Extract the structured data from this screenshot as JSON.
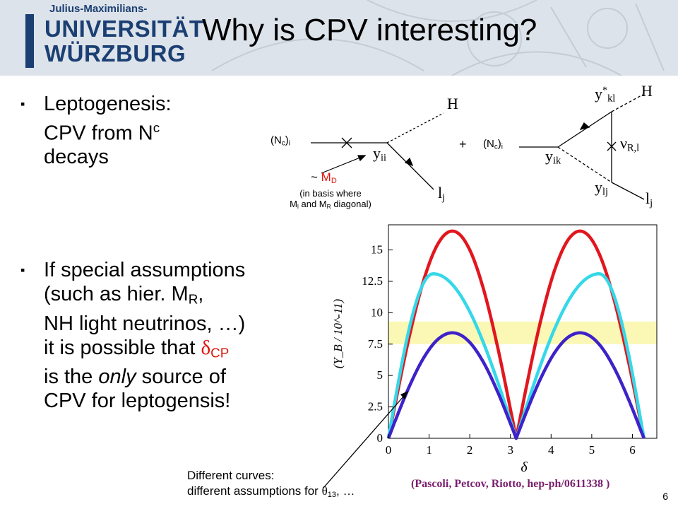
{
  "logo": {
    "line1": "Julius-Maximilians-",
    "line2": "UNIVERSITÄT",
    "line3": "WÜRZBURG"
  },
  "title": "Why is CPV interesting?",
  "bullets": {
    "marker": "▪",
    "b1_line1": "Leptogenesis:",
    "b1_line2": "CPV from N",
    "b1_sup": "c",
    "b1_line3": "decays",
    "b2_line1": "If special assumptions",
    "b2_line2a": "(such as hier. M",
    "b2_line2sub": "R",
    "b2_line2b": ",",
    "b2_line3": "NH light neutrinos, …)",
    "b2_line4a": "it is possible that ",
    "b2_delta": "δ",
    "b2_cp": "CP",
    "b2_line5a": "is the ",
    "b2_only": "only",
    "b2_line5b": " source of",
    "b2_line6": "CPV for leptogensis!"
  },
  "diagram": {
    "nc_left": "(N",
    "nc_left_sub": "c",
    "nc_left_close": ")",
    "nc_left_i": "i",
    "H1": "H",
    "y_ii": "y",
    "y_ii_sub": "ii",
    "l_j1": "l",
    "l_j1_sub": "j",
    "plus": "+",
    "nc_right": "(N",
    "nc_right_sub": "c",
    "nc_right_close": ")",
    "nc_right_i": "i",
    "y_ik": "y",
    "y_ik_sub": "ik",
    "y_kl": "y",
    "y_kl_sup": "*",
    "y_kl_sub": "kl",
    "H2": "H",
    "nu": "ν",
    "nu_sub": "R,l",
    "y_lj": "y",
    "y_lj_sub": "lj",
    "l_j2": "l",
    "l_j2_sub": "j",
    "md_tilde": "~ ",
    "md_M": "M",
    "md_sub": "D",
    "basis_line1": "(in basis where",
    "basis_line2a": "M",
    "basis_line2_lsub": "l",
    "basis_line2b": " and M",
    "basis_line2_rsub": "R",
    "basis_line2c": " diagonal)"
  },
  "chart_data": {
    "type": "line",
    "xlabel": "δ",
    "ylabel": "(Y_B / 10^-11)",
    "xlim": [
      0,
      6.6
    ],
    "ylim": [
      0,
      17
    ],
    "xticks": [
      "0",
      "1",
      "2",
      "3",
      "4",
      "5",
      "6"
    ],
    "yticks": [
      "0",
      "2.5",
      "5",
      "7.5",
      "10",
      "12.5",
      "15"
    ],
    "band": {
      "y0": 7.5,
      "y1": 9.3,
      "color": "#fbf8b5"
    },
    "series": [
      {
        "color": "#e2161e",
        "peak": 16.5,
        "peak_x": [
          1.57,
          4.71
        ]
      },
      {
        "color": "#35d8e8",
        "peak": 13.1,
        "peak_x": [
          1.1,
          5.18
        ]
      },
      {
        "color": "#3e22c9",
        "peak": 8.4,
        "peak_x": [
          1.57,
          4.71
        ]
      }
    ]
  },
  "note": {
    "line1": "Different curves:",
    "line2a": "different assumptions for ",
    "line2theta": "θ",
    "line2sub": "13",
    "line2b": ", …"
  },
  "citation": "(Pascoli, Petcov, Riotto, hep-ph/0611338 )",
  "page_number": "6"
}
